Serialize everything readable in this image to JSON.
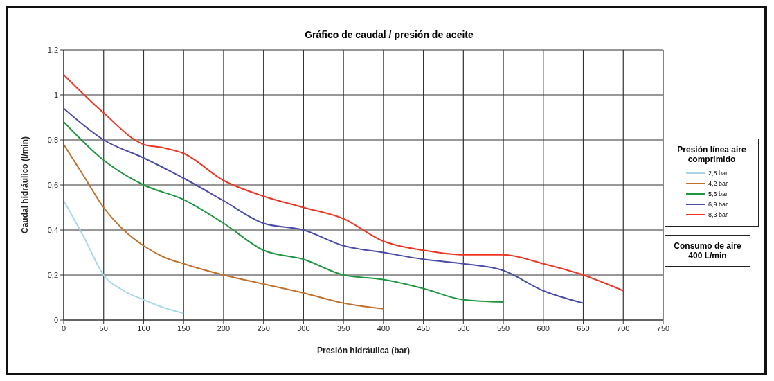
{
  "chart_data": {
    "type": "line",
    "title": "Gráfico de caudal / presión de aceite",
    "xlabel": "Presión hidráulica  (bar)",
    "ylabel": "Caudal hidráulico (l/min)",
    "legend_title": "Presión línea aire comprimido",
    "legend": "right",
    "grid": true,
    "marker": "none",
    "line_style": "solid",
    "xlim": [
      0,
      750
    ],
    "xticks": [
      0,
      50,
      100,
      150,
      200,
      250,
      300,
      350,
      400,
      450,
      500,
      550,
      600,
      650,
      700,
      750
    ],
    "ylim": [
      0,
      1.2
    ],
    "yticks": [
      0,
      {
        "value": 0.2,
        "label": "0,2"
      },
      {
        "value": 0.4,
        "label": "0,4"
      },
      {
        "value": 0.6,
        "label": "0,6"
      },
      {
        "value": 0.8,
        "label": "0,8"
      },
      1,
      {
        "value": 1.2,
        "label": "1,2"
      }
    ],
    "series": [
      {
        "name": "2,8 bar",
        "color": "#a8d8e8",
        "x": [
          0,
          25,
          50,
          75,
          100,
          125,
          150
        ],
        "values": [
          0.53,
          0.37,
          0.2,
          0.13,
          0.09,
          0.055,
          0.03
        ]
      },
      {
        "name": "4,2 bar",
        "color": "#c0702a",
        "x": [
          0,
          25,
          50,
          75,
          100,
          125,
          150,
          200,
          250,
          300,
          350,
          400
        ],
        "values": [
          0.78,
          0.64,
          0.5,
          0.4,
          0.33,
          0.28,
          0.25,
          0.2,
          0.16,
          0.12,
          0.075,
          0.05
        ]
      },
      {
        "name": "5,6 bar",
        "color": "#1e9640",
        "x": [
          0,
          50,
          100,
          150,
          200,
          250,
          300,
          350,
          400,
          450,
          500,
          550
        ],
        "values": [
          0.88,
          0.71,
          0.6,
          0.535,
          0.43,
          0.31,
          0.27,
          0.2,
          0.18,
          0.14,
          0.09,
          0.08
        ]
      },
      {
        "name": "6,9 bar",
        "color": "#4a4aa8",
        "x": [
          0,
          50,
          100,
          150,
          200,
          250,
          300,
          350,
          400,
          450,
          500,
          550,
          600,
          650
        ],
        "values": [
          0.94,
          0.8,
          0.72,
          0.63,
          0.53,
          0.43,
          0.4,
          0.33,
          0.3,
          0.27,
          0.25,
          0.22,
          0.13,
          0.075
        ]
      },
      {
        "name": "8,3 bar",
        "color": "#ee3524",
        "x": [
          0,
          50,
          100,
          125,
          150,
          200,
          250,
          300,
          350,
          400,
          450,
          500,
          550,
          600,
          650,
          700
        ],
        "values": [
          1.09,
          0.92,
          0.78,
          0.765,
          0.74,
          0.62,
          0.55,
          0.5,
          0.45,
          0.35,
          0.31,
          0.29,
          0.29,
          0.25,
          0.2,
          0.13
        ]
      }
    ],
    "annotations": [
      "Consumo de aire 400 L/min"
    ]
  }
}
